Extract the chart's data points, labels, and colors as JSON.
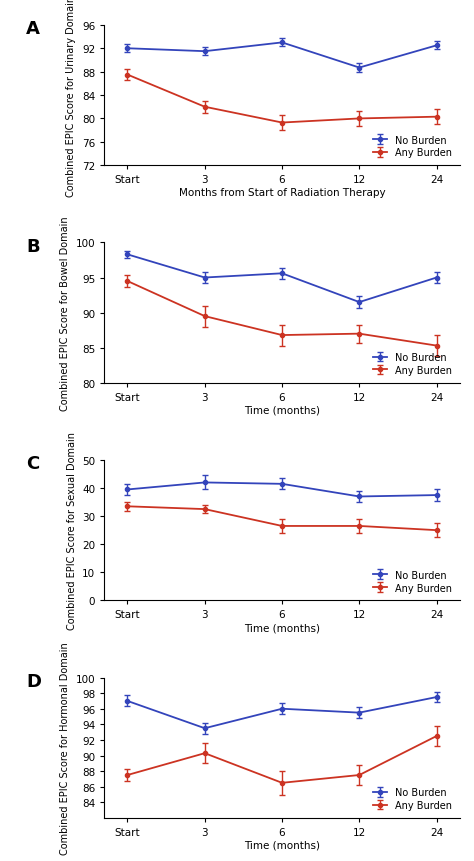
{
  "panels": [
    {
      "label": "A",
      "ylabel": "Combined EPIC Score for Urinary Domain",
      "xlabel": "Months from Start of Radiation Therapy",
      "ylim": [
        72,
        96
      ],
      "yticks": [
        72,
        76,
        80,
        84,
        88,
        92,
        96
      ],
      "blue": {
        "y": [
          92.0,
          91.5,
          93.0,
          88.7,
          92.5
        ],
        "yerr": [
          0.7,
          0.7,
          0.7,
          0.7,
          0.7
        ]
      },
      "red": {
        "y": [
          87.5,
          82.0,
          79.3,
          80.0,
          80.3
        ],
        "yerr": [
          1.0,
          1.0,
          1.3,
          1.3,
          1.3
        ]
      }
    },
    {
      "label": "B",
      "ylabel": "Combined EPIC Score for Bowel Domain",
      "xlabel": "Time (months)",
      "ylim": [
        80,
        100
      ],
      "yticks": [
        80,
        85,
        90,
        95,
        100
      ],
      "blue": {
        "y": [
          98.3,
          95.0,
          95.6,
          91.5,
          95.0
        ],
        "yerr": [
          0.5,
          0.8,
          0.8,
          0.8,
          0.8
        ]
      },
      "red": {
        "y": [
          94.5,
          89.5,
          86.8,
          87.0,
          85.3
        ],
        "yerr": [
          0.8,
          1.5,
          1.5,
          1.3,
          1.5
        ]
      }
    },
    {
      "label": "C",
      "ylabel": "Combined EPIC Score for Sexual Domain",
      "xlabel": "Time (months)",
      "ylim": [
        0,
        50
      ],
      "yticks": [
        0,
        10,
        20,
        30,
        40,
        50
      ],
      "blue": {
        "y": [
          39.5,
          42.0,
          41.5,
          37.0,
          37.5
        ],
        "yerr": [
          2.0,
          2.5,
          2.0,
          2.0,
          2.0
        ]
      },
      "red": {
        "y": [
          33.5,
          32.5,
          26.5,
          26.5,
          25.0
        ],
        "yerr": [
          1.5,
          1.5,
          2.5,
          2.5,
          2.5
        ]
      }
    },
    {
      "label": "D",
      "ylabel": "Combined EPIC Score for Hormonal Domain",
      "xlabel": "Time (months)",
      "ylim": [
        82,
        100
      ],
      "yticks": [
        84,
        86,
        88,
        90,
        92,
        94,
        96,
        98,
        100
      ],
      "blue": {
        "y": [
          97.0,
          93.5,
          96.0,
          95.5,
          97.5
        ],
        "yerr": [
          0.7,
          0.7,
          0.7,
          0.7,
          0.7
        ]
      },
      "red": {
        "y": [
          87.5,
          90.3,
          86.5,
          87.5,
          92.5
        ],
        "yerr": [
          0.8,
          1.3,
          1.5,
          1.3,
          1.3
        ]
      }
    }
  ],
  "x_positions": [
    0,
    1,
    2,
    3,
    4
  ],
  "x_labels": [
    "Start",
    "3",
    "6",
    "12",
    "24"
  ],
  "blue_color": "#3344bb",
  "red_color": "#cc3322",
  "legend_labels": [
    "No Burden",
    "Any Burden"
  ]
}
